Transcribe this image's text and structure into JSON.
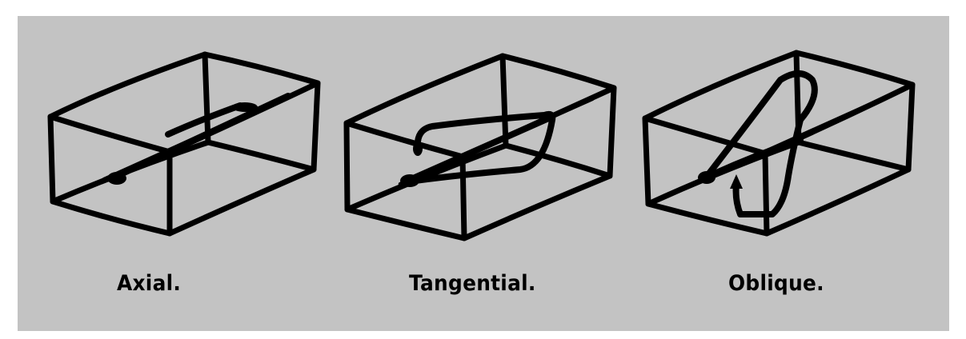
{
  "figure": {
    "background_color": "#c3c3c3",
    "line_color": "#000000",
    "panels": [
      {
        "label": "Axial."
      },
      {
        "label": "Tangential."
      },
      {
        "label": "Oblique."
      }
    ]
  }
}
